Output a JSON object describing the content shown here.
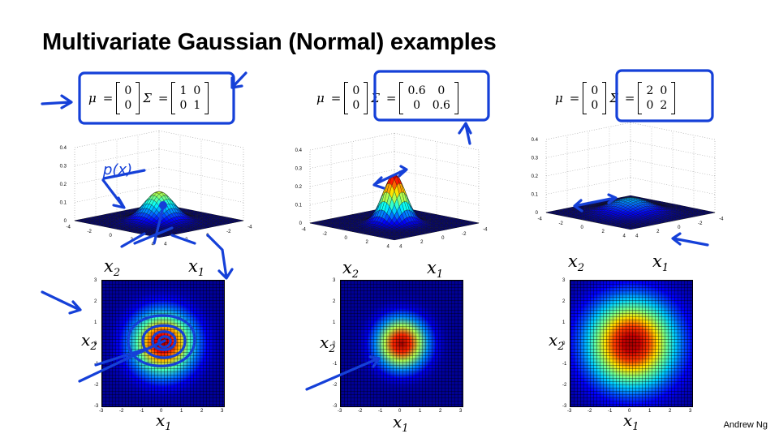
{
  "slide": {
    "title": "Multivariate Gaussian (Normal) examples",
    "author": "Andrew Ng"
  },
  "panels": [
    {
      "mu_symbol": "μ",
      "equals": "=",
      "mu": [
        "0",
        "0"
      ],
      "sigma_symbol": "Σ",
      "sigma": [
        [
          "1",
          "0"
        ],
        [
          "0",
          "1"
        ]
      ],
      "surface_xlabel": "x1",
      "surface_ylabel": "x2",
      "heatmap_xlabel": "x1",
      "heatmap_ylabel": "x2",
      "peak": 0.16
    },
    {
      "mu_symbol": "μ",
      "equals": "=",
      "mu": [
        "0",
        "0"
      ],
      "sigma_symbol": "Σ",
      "sigma": [
        [
          "0.6",
          "0"
        ],
        [
          "0",
          "0.6"
        ]
      ],
      "surface_xlabel": "x1",
      "surface_ylabel": "x2",
      "heatmap_xlabel": "x1",
      "heatmap_ylabel": "x2",
      "peak": 0.27
    },
    {
      "mu_symbol": "μ",
      "equals": "=",
      "mu": [
        "0",
        "0"
      ],
      "sigma_symbol": "Σ",
      "sigma": [
        [
          "2",
          "0"
        ],
        [
          "0",
          "2"
        ]
      ],
      "surface_xlabel": "x1",
      "surface_ylabel": "x2",
      "heatmap_xlabel": "x1",
      "heatmap_ylabel": "x2",
      "peak": 0.08
    }
  ],
  "surface_axes": {
    "z_ticks": [
      "0",
      "0.1",
      "0.2",
      "0.3",
      "0.4"
    ],
    "x_ticks": [
      "-4",
      "-2",
      "0",
      "2",
      "4"
    ],
    "y_ticks": [
      "-4",
      "-2",
      "0",
      "2",
      "4"
    ]
  },
  "heatmap_axes": {
    "x_ticks": [
      "-3",
      "-2",
      "-1",
      "0",
      "1",
      "2",
      "3"
    ],
    "y_ticks": [
      "3",
      "2",
      "1",
      "0",
      "-1",
      "-2",
      "-3"
    ]
  },
  "annotation": {
    "handwritten_label": "p(x)",
    "ink_color": "#1540d8"
  }
}
